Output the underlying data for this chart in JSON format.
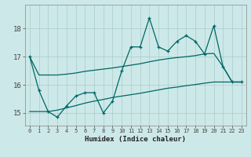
{
  "xlabel": "Humidex (Indice chaleur)",
  "background_color": "#cde8e8",
  "grid_color": "#a8cccc",
  "line_color": "#006666",
  "xlim": [
    -0.5,
    23.5
  ],
  "ylim": [
    14.55,
    18.85
  ],
  "yticks": [
    15,
    16,
    17,
    18
  ],
  "xticks": [
    0,
    1,
    2,
    3,
    4,
    5,
    6,
    7,
    8,
    9,
    10,
    11,
    12,
    13,
    14,
    15,
    16,
    17,
    18,
    19,
    20,
    21,
    22,
    23
  ],
  "line1_x": [
    0,
    1,
    2,
    3,
    4,
    5,
    6,
    7,
    8,
    9,
    10,
    11,
    12,
    13,
    14,
    15,
    16,
    17,
    18,
    19,
    20,
    21,
    22,
    23
  ],
  "line1_y": [
    17.0,
    16.35,
    16.35,
    16.35,
    16.38,
    16.42,
    16.48,
    16.52,
    16.56,
    16.6,
    16.65,
    16.7,
    16.75,
    16.82,
    16.88,
    16.93,
    16.97,
    17.0,
    17.04,
    17.1,
    17.12,
    16.65,
    16.1,
    16.1
  ],
  "line2_x": [
    0,
    1,
    2,
    3,
    4,
    5,
    6,
    7,
    8,
    9,
    10,
    11,
    12,
    13,
    14,
    15,
    16,
    17,
    18,
    19,
    20,
    21,
    22,
    23
  ],
  "line2_y": [
    17.0,
    15.8,
    15.05,
    14.85,
    15.25,
    15.6,
    15.72,
    15.72,
    15.0,
    15.42,
    16.5,
    17.35,
    17.35,
    18.38,
    17.35,
    17.2,
    17.55,
    17.75,
    17.55,
    17.1,
    18.1,
    16.65,
    16.1,
    16.1
  ],
  "line3_x": [
    0,
    1,
    2,
    3,
    4,
    5,
    6,
    7,
    8,
    9,
    10,
    11,
    12,
    13,
    14,
    15,
    16,
    17,
    18,
    19,
    20,
    21,
    22,
    23
  ],
  "line3_y": [
    15.05,
    15.05,
    15.05,
    15.1,
    15.18,
    15.26,
    15.35,
    15.42,
    15.48,
    15.55,
    15.6,
    15.65,
    15.7,
    15.76,
    15.82,
    15.88,
    15.92,
    15.97,
    16.01,
    16.06,
    16.1,
    16.1,
    16.1,
    16.1
  ]
}
